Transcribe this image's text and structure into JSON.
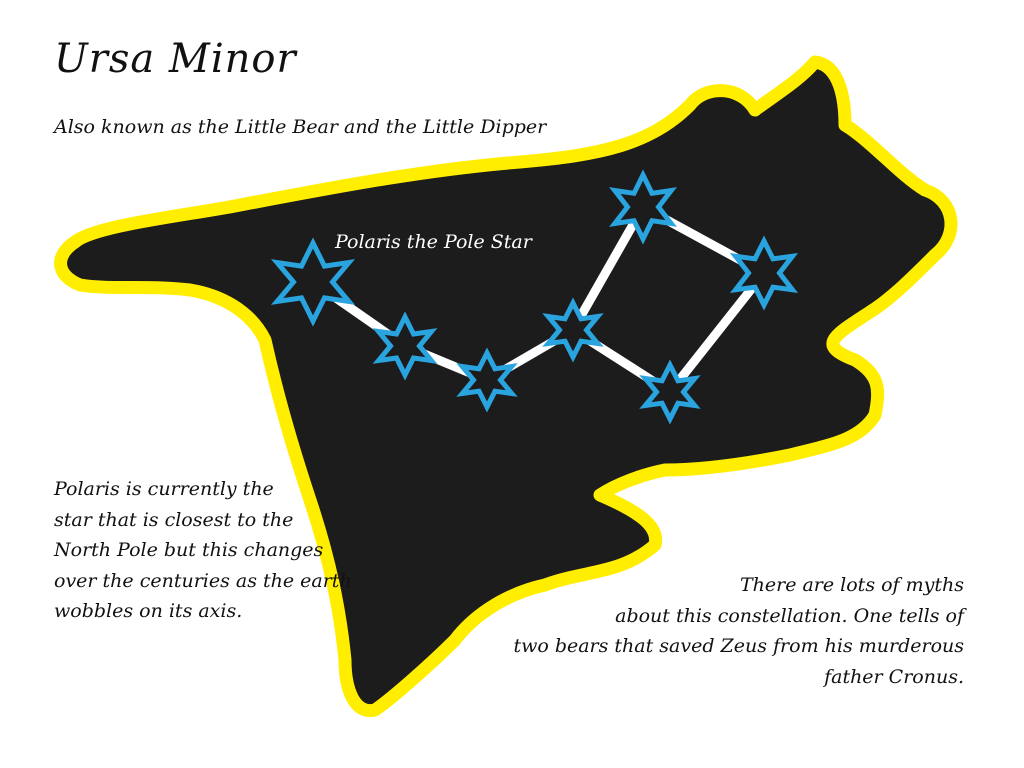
{
  "title": "Ursa Minor",
  "subtitle": "Also known as the Little Bear and the Little Dipper",
  "polaris_label": "Polaris the Pole Star",
  "polaris_note": [
    "Polaris is currently the",
    "star that is closest to the",
    "North Pole but this changes",
    "over the centuries as the earth",
    "wobbles on its axis."
  ],
  "myth_note": [
    "There are lots of myths",
    "about this constellation. One tells of",
    "two bears that saved Zeus from his murderous",
    "father Cronus."
  ],
  "colors": {
    "background": "#ffffff",
    "bear_fill": "#1c1c1c",
    "bear_outline": "#ffee00",
    "star_stroke": "#2aa4df",
    "line": "#ffffff",
    "text": "#111111"
  },
  "icons": [
    "star-icon"
  ]
}
